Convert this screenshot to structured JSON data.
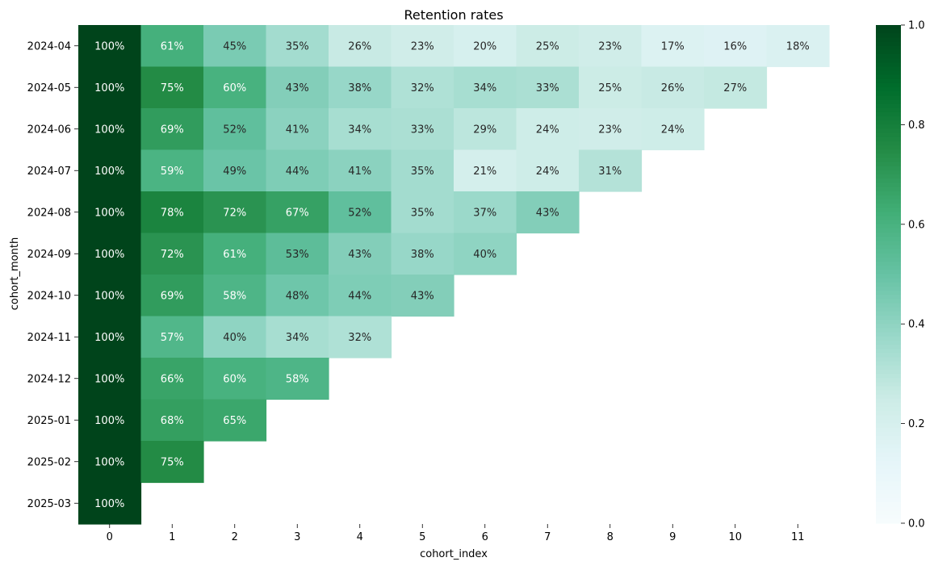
{
  "chart_data": {
    "type": "heatmap",
    "title": "Retention rates",
    "xlabel": "cohort_index",
    "ylabel": "cohort_month",
    "x_categories": [
      "0",
      "1",
      "2",
      "3",
      "4",
      "5",
      "6",
      "7",
      "8",
      "9",
      "10",
      "11"
    ],
    "y_categories": [
      "2024-04",
      "2024-05",
      "2024-06",
      "2024-07",
      "2024-08",
      "2024-09",
      "2024-10",
      "2024-11",
      "2024-12",
      "2025-01",
      "2025-02",
      "2025-03"
    ],
    "values": [
      [
        1.0,
        0.61,
        0.45,
        0.35,
        0.26,
        0.23,
        0.2,
        0.25,
        0.23,
        0.17,
        0.16,
        0.18
      ],
      [
        1.0,
        0.75,
        0.6,
        0.43,
        0.38,
        0.32,
        0.34,
        0.33,
        0.25,
        0.26,
        0.27,
        null
      ],
      [
        1.0,
        0.69,
        0.52,
        0.41,
        0.34,
        0.33,
        0.29,
        0.24,
        0.23,
        0.24,
        null,
        null
      ],
      [
        1.0,
        0.59,
        0.49,
        0.44,
        0.41,
        0.35,
        0.21,
        0.24,
        0.31,
        null,
        null,
        null
      ],
      [
        1.0,
        0.78,
        0.72,
        0.67,
        0.52,
        0.35,
        0.37,
        0.43,
        null,
        null,
        null,
        null
      ],
      [
        1.0,
        0.72,
        0.61,
        0.53,
        0.43,
        0.38,
        0.4,
        null,
        null,
        null,
        null,
        null
      ],
      [
        1.0,
        0.69,
        0.58,
        0.48,
        0.44,
        0.43,
        null,
        null,
        null,
        null,
        null,
        null
      ],
      [
        1.0,
        0.57,
        0.4,
        0.34,
        0.32,
        null,
        null,
        null,
        null,
        null,
        null,
        null
      ],
      [
        1.0,
        0.66,
        0.6,
        0.58,
        null,
        null,
        null,
        null,
        null,
        null,
        null,
        null
      ],
      [
        1.0,
        0.68,
        0.65,
        null,
        null,
        null,
        null,
        null,
        null,
        null,
        null,
        null
      ],
      [
        1.0,
        0.75,
        null,
        null,
        null,
        null,
        null,
        null,
        null,
        null,
        null,
        null
      ],
      [
        1.0,
        null,
        null,
        null,
        null,
        null,
        null,
        null,
        null,
        null,
        null,
        null
      ]
    ],
    "value_format": "percent",
    "colormap": "BuGn",
    "vmin": 0.0,
    "vmax": 1.0,
    "colorbar_ticks": [
      "0.0",
      "0.2",
      "0.4",
      "0.6",
      "0.8",
      "1.0"
    ],
    "grid": false
  },
  "colors": {
    "text_dark": "#262626",
    "text_light": "#ffffff"
  }
}
